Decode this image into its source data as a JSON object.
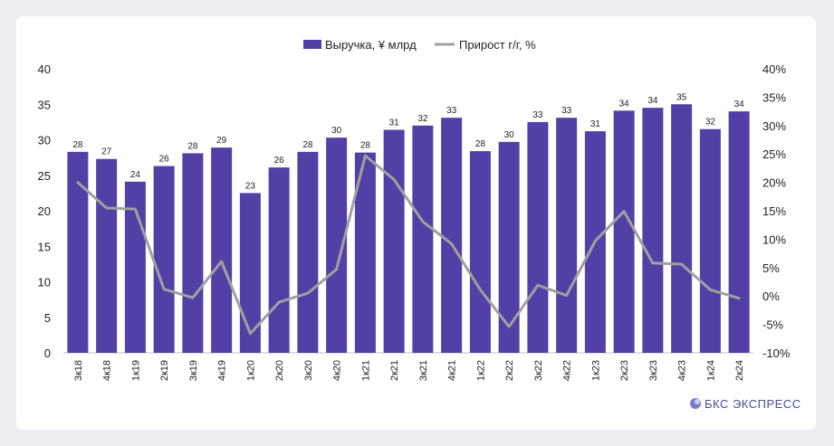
{
  "chart_data": {
    "type": "bar+line",
    "categories": [
      "3к18",
      "4к18",
      "1к19",
      "2к19",
      "3к19",
      "4к19",
      "1к20",
      "2к20",
      "3к20",
      "4к20",
      "1к21",
      "2к21",
      "3к21",
      "4к21",
      "1к22",
      "2к22",
      "3к22",
      "4к22",
      "1к23",
      "2к23",
      "3к23",
      "4к23",
      "1к24",
      "2к24"
    ],
    "series": [
      {
        "name": "Выручка, ¥ млрд",
        "type": "bar",
        "axis": "left",
        "values": [
          28.3,
          27.3,
          24.1,
          26.3,
          28.1,
          28.9,
          22.5,
          26.1,
          28.3,
          30.3,
          28.2,
          31.4,
          32.0,
          33.1,
          28.4,
          29.7,
          32.5,
          33.1,
          31.2,
          34.1,
          34.5,
          35.0,
          31.5,
          34.0
        ],
        "labels": [
          "28",
          "27",
          "24",
          "26",
          "28",
          "29",
          "23",
          "26",
          "28",
          "30",
          "28",
          "31",
          "32",
          "33",
          "28",
          "30",
          "33",
          "33",
          "31",
          "34",
          "34",
          "35",
          "32",
          "34"
        ]
      },
      {
        "name": "Прирост г/г, %",
        "type": "line",
        "axis": "right",
        "values": [
          20.0,
          15.5,
          15.3,
          1.2,
          -0.3,
          6.1,
          -6.6,
          -1.1,
          0.5,
          4.7,
          24.7,
          20.5,
          13.1,
          9.2,
          1.1,
          -5.4,
          1.9,
          0.1,
          9.7,
          14.9,
          5.8,
          5.6,
          1.1,
          -0.4
        ]
      }
    ],
    "y_left": {
      "min": 0,
      "max": 40,
      "step": 5,
      "ticks": [
        "0",
        "5",
        "10",
        "15",
        "20",
        "25",
        "30",
        "35",
        "40"
      ]
    },
    "y_right": {
      "min": -10,
      "max": 40,
      "step": 5,
      "ticks": [
        "-10%",
        "-5%",
        "0%",
        "5%",
        "10%",
        "15%",
        "20%",
        "25%",
        "30%",
        "35%",
        "40%"
      ]
    },
    "legend_position": "top-center",
    "grid": false,
    "colors": {
      "bar": "#5340a6",
      "line": "#a0a0a0"
    }
  },
  "brand": {
    "name": "БКС ЭКСПРЕСС"
  }
}
